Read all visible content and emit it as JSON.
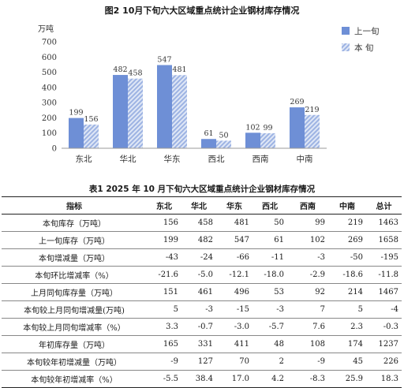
{
  "chart_data": {
    "type": "bar",
    "title": "图2   10月下旬六大区域重点统计企业钢材库存情况",
    "ylabel": "万吨",
    "ylim": [
      0,
      700
    ],
    "yticks": [
      0,
      100,
      200,
      300,
      400,
      500,
      600,
      700
    ],
    "categories": [
      "东北",
      "华北",
      "华东",
      "西北",
      "西南",
      "中南"
    ],
    "series": [
      {
        "name": "上一旬",
        "values": [
          199,
          482,
          547,
          61,
          102,
          269
        ],
        "color": "#6e8fd6"
      },
      {
        "name": "本  旬",
        "values": [
          156,
          458,
          481,
          50,
          99,
          219
        ],
        "color": "#9db3e3",
        "pattern": "diagonal-hatch"
      }
    ],
    "legend_position": "top-right",
    "grid": false
  },
  "table": {
    "title": "表1   2025 年 10 月下旬六大区域重点统计企业钢材库存情况",
    "headers": [
      "指标",
      "东北",
      "华北",
      "华东",
      "西北",
      "西南",
      "中南",
      "总计"
    ],
    "rows": [
      [
        "本旬库存（万吨）",
        "156",
        "458",
        "481",
        "50",
        "99",
        "219",
        "1463"
      ],
      [
        "上一旬库存（万吨）",
        "199",
        "482",
        "547",
        "61",
        "102",
        "269",
        "1658"
      ],
      [
        "本旬增减量（万吨）",
        "-43",
        "-24",
        "-66",
        "-11",
        "-3",
        "-50",
        "-195"
      ],
      [
        "本旬环比增减率（%）",
        "-21.6",
        "-5.0",
        "-12.1",
        "-18.0",
        "-2.9",
        "-18.6",
        "-11.8"
      ],
      [
        "上月同旬库存量（万吨）",
        "151",
        "461",
        "496",
        "53",
        "92",
        "214",
        "1467"
      ],
      [
        "本旬较上月同旬增减量(万吨)",
        "5",
        "-3",
        "-15",
        "-3",
        "7",
        "5",
        "-4"
      ],
      [
        "本旬较上月同旬增减率（%）",
        "3.3",
        "-0.7",
        "-3.0",
        "-5.7",
        "7.6",
        "2.3",
        "-0.3"
      ],
      [
        "年初库存量（万吨）",
        "165",
        "331",
        "411",
        "48",
        "108",
        "174",
        "1237"
      ],
      [
        "本旬较年初增减量（万吨）",
        "-9",
        "127",
        "70",
        "2",
        "-9",
        "45",
        "226"
      ],
      [
        "本旬较年初增减率（%）",
        "-5.5",
        "38.4",
        "17.0",
        "4.2",
        "-8.3",
        "25.9",
        "18.3"
      ]
    ]
  }
}
